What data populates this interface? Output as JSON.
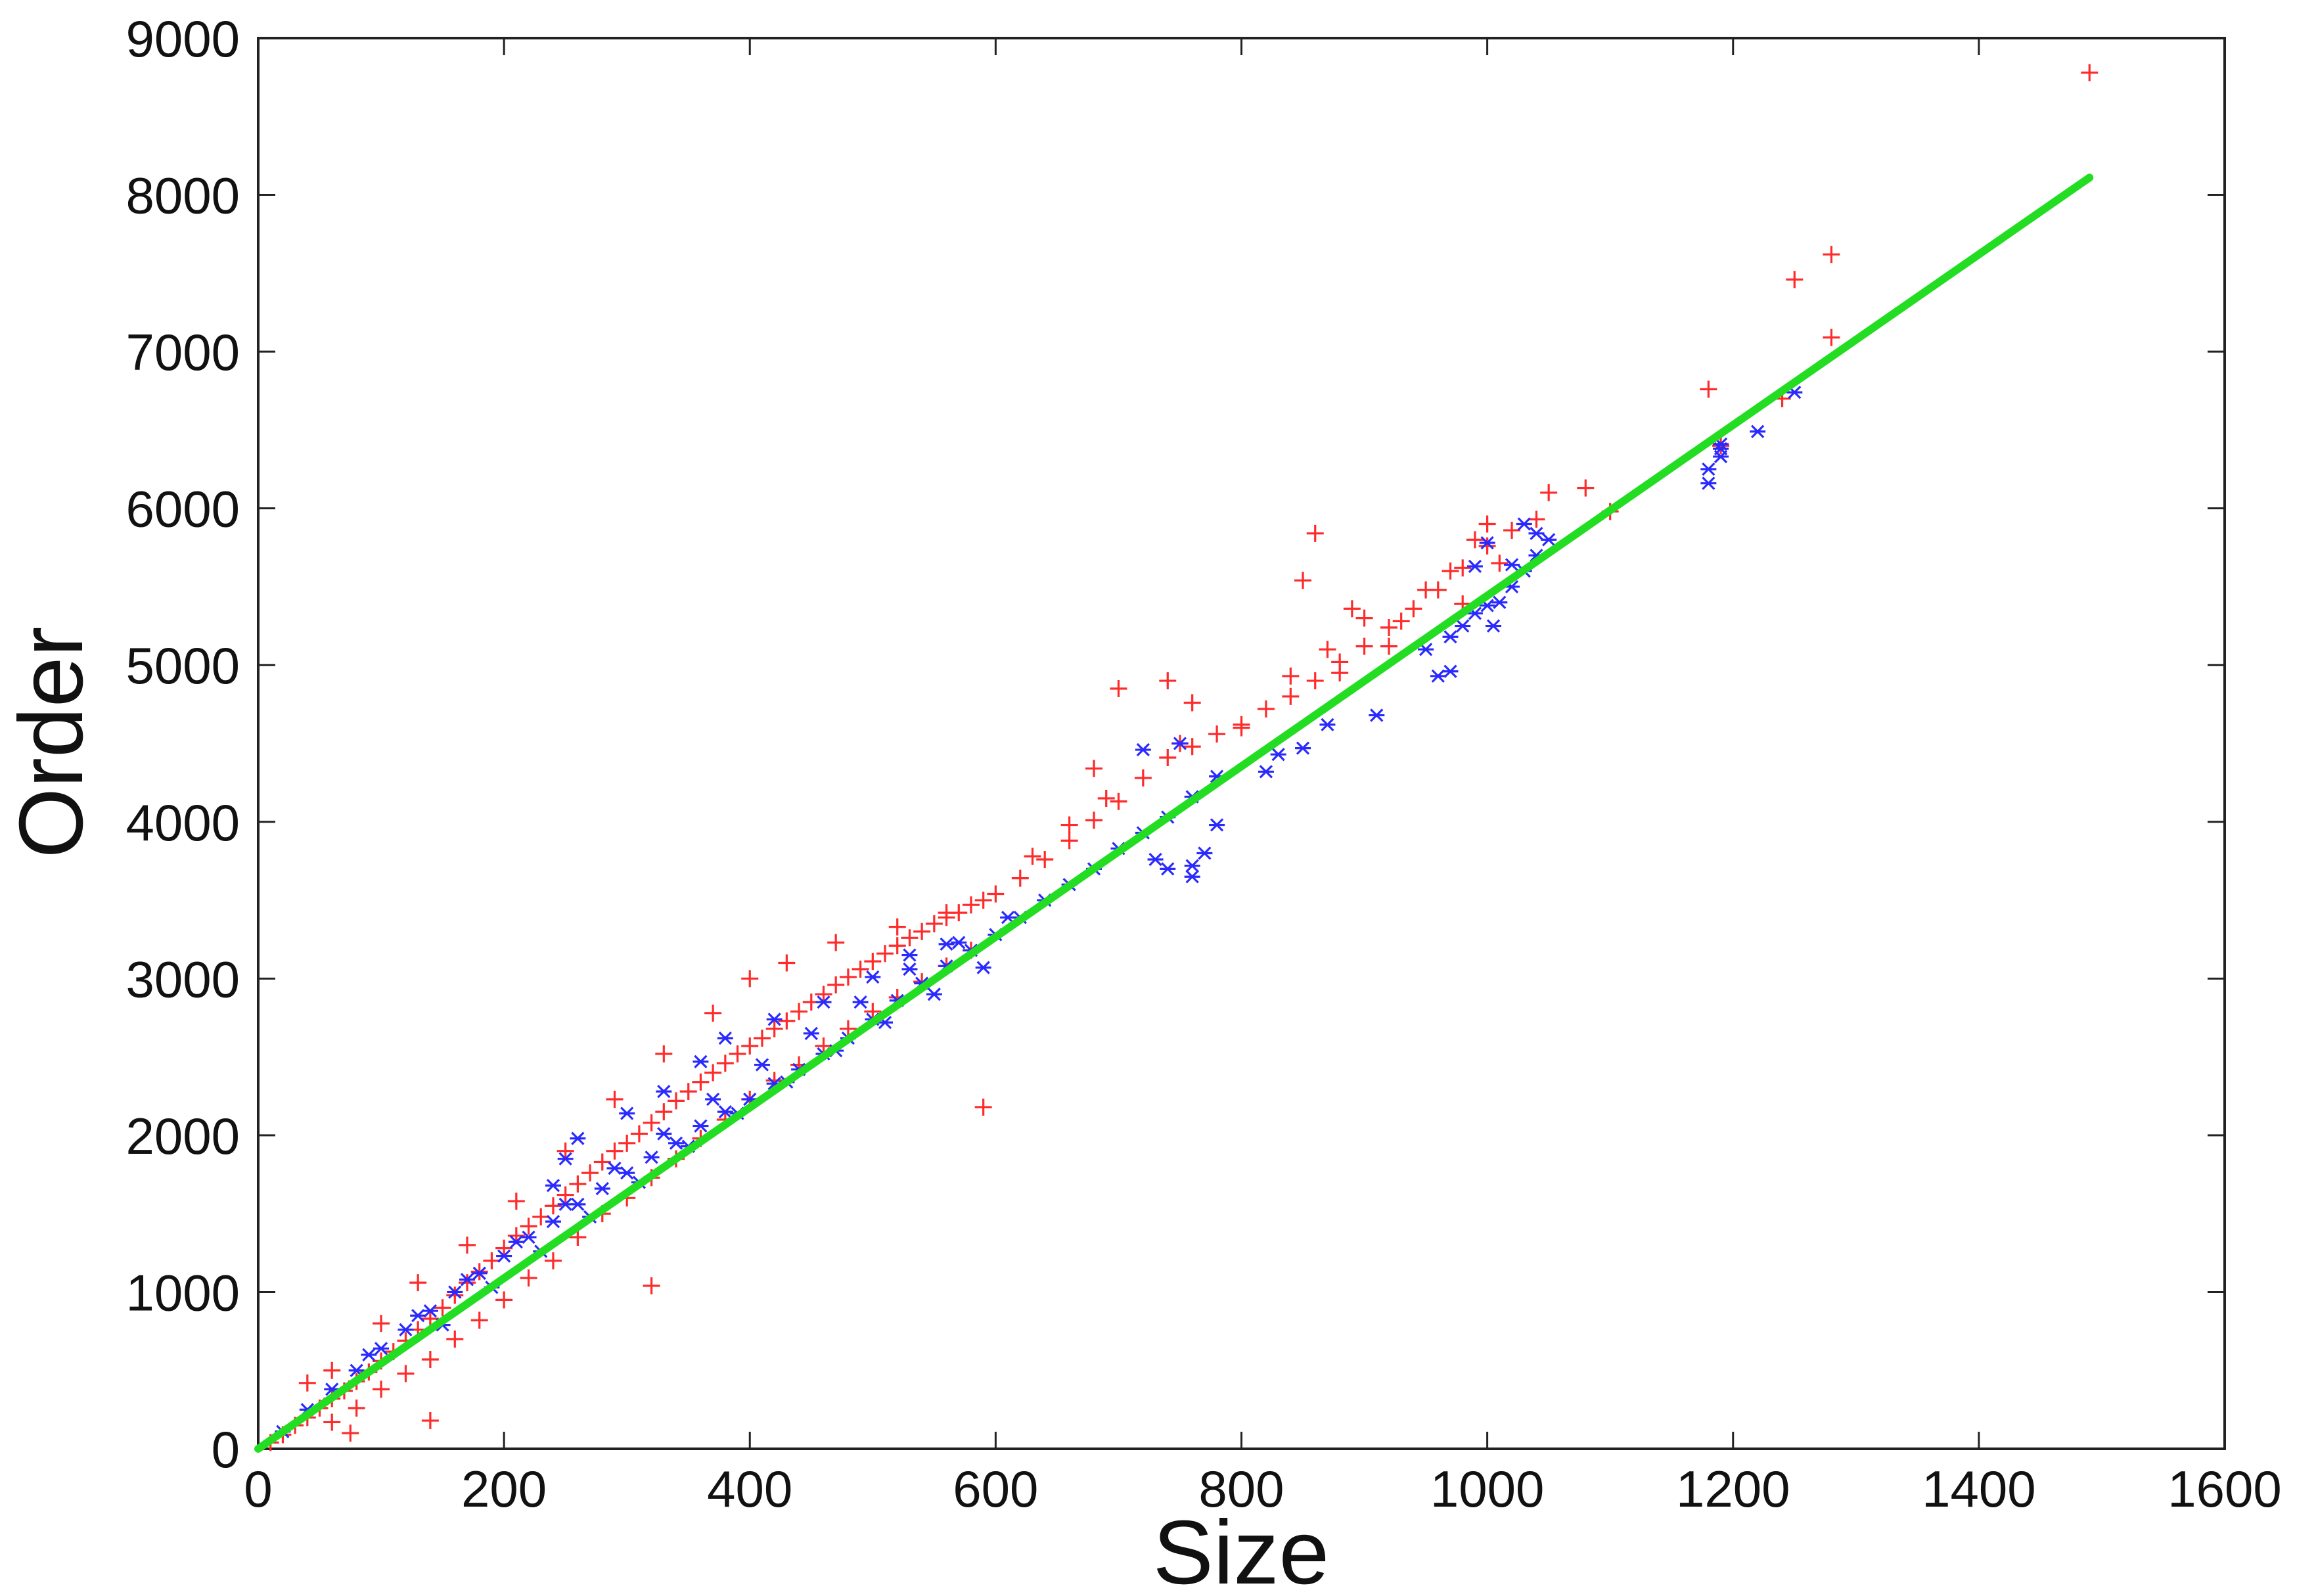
{
  "chart_data": {
    "type": "scatter",
    "title": "",
    "xlabel": "Size",
    "ylabel": "Order",
    "xlim": [
      0,
      1600
    ],
    "ylim": [
      0,
      9000
    ],
    "x_ticks": [
      0,
      200,
      400,
      600,
      800,
      1000,
      1200,
      1400,
      1600
    ],
    "y_ticks": [
      0,
      1000,
      2000,
      3000,
      4000,
      5000,
      6000,
      7000,
      8000,
      9000
    ],
    "x_tick_labels": [
      "0",
      "200",
      "400",
      "600",
      "800",
      "1000",
      "1200",
      "1400",
      "1600"
    ],
    "y_tick_labels": [
      "0",
      "1000",
      "2000",
      "3000",
      "4000",
      "5000",
      "6000",
      "7000",
      "8000",
      "9000"
    ],
    "grid": false,
    "legend": "none",
    "series": [
      {
        "marker": "plus",
        "color": "#ff2a2a",
        "points": [
          [
            10,
            40
          ],
          [
            20,
            90
          ],
          [
            30,
            150
          ],
          [
            40,
            200
          ],
          [
            50,
            260
          ],
          [
            60,
            320
          ],
          [
            70,
            370
          ],
          [
            80,
            430
          ],
          [
            90,
            490
          ],
          [
            100,
            560
          ],
          [
            110,
            620
          ],
          [
            120,
            690
          ],
          [
            130,
            760
          ],
          [
            140,
            830
          ],
          [
            150,
            900
          ],
          [
            160,
            980
          ],
          [
            170,
            1060
          ],
          [
            180,
            1130
          ],
          [
            190,
            1200
          ],
          [
            200,
            1280
          ],
          [
            210,
            1360
          ],
          [
            220,
            1420
          ],
          [
            230,
            1480
          ],
          [
            240,
            1550
          ],
          [
            250,
            1620
          ],
          [
            260,
            1690
          ],
          [
            270,
            1760
          ],
          [
            280,
            1830
          ],
          [
            290,
            1900
          ],
          [
            300,
            1950
          ],
          [
            310,
            2010
          ],
          [
            320,
            2080
          ],
          [
            330,
            2150
          ],
          [
            340,
            2220
          ],
          [
            350,
            2280
          ],
          [
            360,
            2340
          ],
          [
            370,
            2400
          ],
          [
            380,
            2460
          ],
          [
            390,
            2520
          ],
          [
            400,
            2570
          ],
          [
            410,
            2620
          ],
          [
            420,
            2680
          ],
          [
            430,
            2730
          ],
          [
            440,
            2790
          ],
          [
            450,
            2850
          ],
          [
            460,
            2900
          ],
          [
            470,
            2960
          ],
          [
            480,
            3010
          ],
          [
            490,
            3060
          ],
          [
            500,
            3110
          ],
          [
            510,
            3160
          ],
          [
            520,
            3210
          ],
          [
            530,
            3260
          ],
          [
            540,
            3300
          ],
          [
            550,
            3350
          ],
          [
            560,
            3390
          ],
          [
            570,
            3420
          ],
          [
            580,
            3470
          ],
          [
            600,
            3540
          ],
          [
            620,
            3640
          ],
          [
            640,
            3760
          ],
          [
            660,
            3880
          ],
          [
            680,
            4010
          ],
          [
            700,
            4130
          ],
          [
            720,
            4280
          ],
          [
            740,
            4410
          ],
          [
            760,
            4480
          ],
          [
            780,
            4560
          ],
          [
            800,
            4620
          ],
          [
            820,
            4720
          ],
          [
            840,
            4800
          ],
          [
            860,
            4900
          ],
          [
            880,
            5020
          ],
          [
            900,
            5120
          ],
          [
            920,
            5240
          ],
          [
            940,
            5360
          ],
          [
            960,
            5480
          ],
          [
            980,
            5620
          ],
          [
            1000,
            5760
          ],
          [
            1020,
            5860
          ],
          [
            1040,
            5930
          ],
          [
            60,
            170
          ],
          [
            80,
            260
          ],
          [
            100,
            380
          ],
          [
            120,
            480
          ],
          [
            140,
            570
          ],
          [
            160,
            700
          ],
          [
            180,
            820
          ],
          [
            200,
            950
          ],
          [
            220,
            1090
          ],
          [
            240,
            1200
          ],
          [
            260,
            1350
          ],
          [
            280,
            1500
          ],
          [
            300,
            1600
          ],
          [
            320,
            1730
          ],
          [
            340,
            1850
          ],
          [
            360,
            1980
          ],
          [
            380,
            2100
          ],
          [
            400,
            2230
          ],
          [
            420,
            2350
          ],
          [
            440,
            2450
          ],
          [
            460,
            2570
          ],
          [
            480,
            2680
          ],
          [
            500,
            2790
          ],
          [
            520,
            2880
          ],
          [
            540,
            2980
          ],
          [
            560,
            3080
          ],
          [
            580,
            3180
          ],
          [
            40,
            420
          ],
          [
            60,
            500
          ],
          [
            100,
            800
          ],
          [
            130,
            1060
          ],
          [
            170,
            1300
          ],
          [
            210,
            1580
          ],
          [
            250,
            1900
          ],
          [
            290,
            2230
          ],
          [
            330,
            2520
          ],
          [
            370,
            2780
          ],
          [
            400,
            3000
          ],
          [
            430,
            3100
          ],
          [
            470,
            3230
          ],
          [
            520,
            3330
          ],
          [
            560,
            3420
          ],
          [
            590,
            3500
          ],
          [
            630,
            3780
          ],
          [
            660,
            3980
          ],
          [
            690,
            4150
          ],
          [
            75,
            100
          ],
          [
            140,
            180
          ],
          [
            320,
            1040
          ],
          [
            590,
            2180
          ],
          [
            680,
            4340
          ],
          [
            700,
            4850
          ],
          [
            740,
            4900
          ],
          [
            750,
            4500
          ],
          [
            760,
            4760
          ],
          [
            800,
            4600
          ],
          [
            840,
            4930
          ],
          [
            850,
            5540
          ],
          [
            860,
            5840
          ],
          [
            870,
            5100
          ],
          [
            880,
            4950
          ],
          [
            890,
            5360
          ],
          [
            900,
            5300
          ],
          [
            920,
            5120
          ],
          [
            930,
            5280
          ],
          [
            950,
            5480
          ],
          [
            970,
            5600
          ],
          [
            980,
            5390
          ],
          [
            990,
            5800
          ],
          [
            1000,
            5900
          ],
          [
            1010,
            5650
          ],
          [
            1050,
            6100
          ],
          [
            1080,
            6130
          ],
          [
            1100,
            5980
          ],
          [
            1180,
            6760
          ],
          [
            1190,
            6400
          ],
          [
            1240,
            6700
          ],
          [
            1250,
            7460
          ],
          [
            1280,
            7620
          ],
          [
            1280,
            7090
          ],
          [
            1490,
            8780
          ]
        ]
      },
      {
        "marker": "asterisk",
        "color": "#2a2aff",
        "points": [
          [
            20,
            110
          ],
          [
            40,
            250
          ],
          [
            60,
            380
          ],
          [
            80,
            500
          ],
          [
            100,
            640
          ],
          [
            120,
            760
          ],
          [
            140,
            880
          ],
          [
            160,
            1000
          ],
          [
            180,
            1120
          ],
          [
            200,
            1230
          ],
          [
            220,
            1350
          ],
          [
            240,
            1450
          ],
          [
            260,
            1560
          ],
          [
            280,
            1660
          ],
          [
            300,
            1760
          ],
          [
            320,
            1860
          ],
          [
            340,
            1950
          ],
          [
            360,
            2060
          ],
          [
            380,
            2150
          ],
          [
            400,
            2230
          ],
          [
            420,
            2330
          ],
          [
            440,
            2420
          ],
          [
            460,
            2520
          ],
          [
            480,
            2620
          ],
          [
            500,
            2740
          ],
          [
            520,
            2860
          ],
          [
            540,
            2970
          ],
          [
            560,
            3080
          ],
          [
            580,
            3180
          ],
          [
            600,
            3280
          ],
          [
            620,
            3390
          ],
          [
            640,
            3500
          ],
          [
            660,
            3600
          ],
          [
            680,
            3700
          ],
          [
            700,
            3830
          ],
          [
            720,
            3930
          ],
          [
            740,
            4030
          ],
          [
            760,
            4160
          ],
          [
            780,
            4290
          ],
          [
            90,
            600
          ],
          [
            130,
            850
          ],
          [
            170,
            1080
          ],
          [
            210,
            1320
          ],
          [
            250,
            1560
          ],
          [
            290,
            1790
          ],
          [
            330,
            2010
          ],
          [
            370,
            2230
          ],
          [
            410,
            2450
          ],
          [
            450,
            2650
          ],
          [
            490,
            2850
          ],
          [
            530,
            3060
          ],
          [
            570,
            3230
          ],
          [
            610,
            3390
          ],
          [
            150,
            790
          ],
          [
            190,
            1030
          ],
          [
            230,
            1260
          ],
          [
            270,
            1480
          ],
          [
            310,
            1700
          ],
          [
            350,
            1930
          ],
          [
            390,
            2140
          ],
          [
            430,
            2340
          ],
          [
            470,
            2540
          ],
          [
            510,
            2720
          ],
          [
            550,
            2900
          ],
          [
            590,
            3070
          ],
          [
            240,
            1680
          ],
          [
            250,
            1850
          ],
          [
            260,
            1980
          ],
          [
            300,
            2140
          ],
          [
            330,
            2280
          ],
          [
            360,
            2470
          ],
          [
            380,
            2620
          ],
          [
            420,
            2740
          ],
          [
            460,
            2850
          ],
          [
            500,
            3010
          ],
          [
            530,
            3150
          ],
          [
            560,
            3220
          ],
          [
            740,
            3700
          ],
          [
            760,
            3650
          ],
          [
            770,
            3800
          ],
          [
            780,
            3980
          ],
          [
            750,
            4500
          ],
          [
            720,
            4460
          ],
          [
            760,
            3720
          ],
          [
            730,
            3760
          ],
          [
            820,
            4320
          ],
          [
            830,
            4430
          ],
          [
            850,
            4470
          ],
          [
            870,
            4620
          ],
          [
            910,
            4680
          ],
          [
            950,
            5100
          ],
          [
            960,
            4930
          ],
          [
            970,
            4960
          ],
          [
            980,
            5250
          ],
          [
            990,
            5330
          ],
          [
            1000,
            5380
          ],
          [
            1010,
            5400
          ],
          [
            1020,
            5500
          ],
          [
            1030,
            5600
          ],
          [
            1040,
            5700
          ],
          [
            1050,
            5800
          ],
          [
            1000,
            5780
          ],
          [
            1030,
            5900
          ],
          [
            1040,
            5840
          ],
          [
            990,
            5630
          ],
          [
            1020,
            5640
          ],
          [
            970,
            5180
          ],
          [
            1005,
            5250
          ],
          [
            1180,
            6160
          ],
          [
            1180,
            6250
          ],
          [
            1190,
            6330
          ],
          [
            1190,
            6410
          ],
          [
            1190,
            6380
          ],
          [
            1220,
            6490
          ],
          [
            1250,
            6740
          ]
        ]
      }
    ],
    "fit_line": {
      "color": "#22dd22",
      "points": [
        [
          0,
          0
        ],
        [
          1490,
          8110
        ]
      ]
    }
  }
}
